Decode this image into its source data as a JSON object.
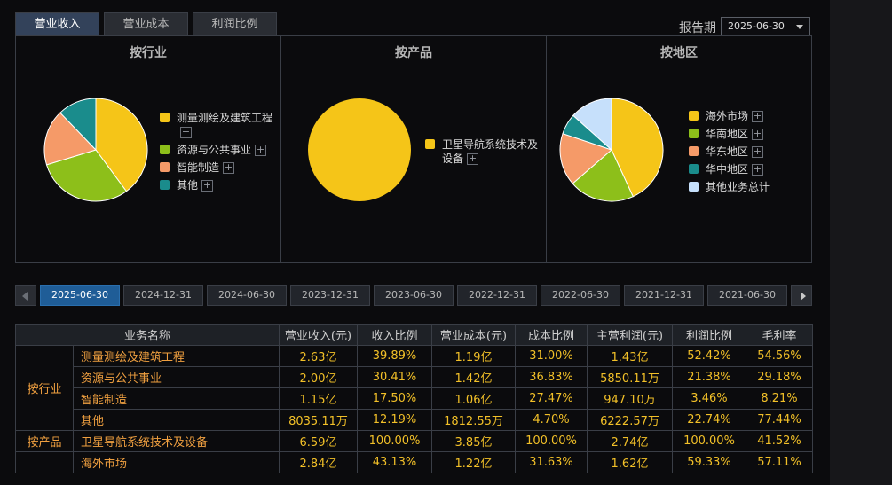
{
  "tabs": [
    "营业收入",
    "营业成本",
    "利润比例"
  ],
  "period": {
    "label": "报告期",
    "value": "2025-06-30"
  },
  "panels": [
    {
      "title": "按行业",
      "items": [
        {
          "name": "测量测绘及建筑工程",
          "value": 39.89,
          "color": "#f5c518",
          "expand": true
        },
        {
          "name": "资源与公共事业",
          "value": 30.41,
          "color": "#8dbf1a",
          "expand": true
        },
        {
          "name": "智能制造",
          "value": 17.5,
          "color": "#f59a68",
          "expand": true
        },
        {
          "name": "其他",
          "value": 12.19,
          "color": "#1a8c8c",
          "expand": true
        }
      ]
    },
    {
      "title": "按产品",
      "items": [
        {
          "name": "卫星导航系统技术及设备",
          "value": 100.0,
          "color": "#f5c518",
          "expand": true
        }
      ]
    },
    {
      "title": "按地区",
      "items": [
        {
          "name": "海外市场",
          "value": 43.13,
          "color": "#f5c518",
          "expand": true
        },
        {
          "name": "华南地区",
          "value": 20.5,
          "color": "#8dbf1a",
          "expand": true
        },
        {
          "name": "华东地区",
          "value": 16.5,
          "color": "#f59a68",
          "expand": true
        },
        {
          "name": "华中地区",
          "value": 6.5,
          "color": "#1a8c8c",
          "expand": true
        },
        {
          "name": "其他业务总计",
          "value": 13.37,
          "color": "#c6e0fb",
          "expand": false
        }
      ]
    }
  ],
  "dates": [
    "2025-06-30",
    "2024-12-31",
    "2024-06-30",
    "2023-12-31",
    "2023-06-30",
    "2022-12-31",
    "2022-06-30",
    "2021-12-31",
    "2021-06-30"
  ],
  "active_date": "2025-06-30",
  "table": {
    "headers": [
      "业务名称",
      "营业收入(元)",
      "收入比例",
      "营业成本(元)",
      "成本比例",
      "主营利润(元)",
      "利润比例",
      "毛利率"
    ],
    "groups": [
      {
        "category": "按行业",
        "rows": [
          [
            "测量测绘及建筑工程",
            "2.63亿",
            "39.89%",
            "1.19亿",
            "31.00%",
            "1.43亿",
            "52.42%",
            "54.56%"
          ],
          [
            "资源与公共事业",
            "2.00亿",
            "30.41%",
            "1.42亿",
            "36.83%",
            "5850.11万",
            "21.38%",
            "29.18%"
          ],
          [
            "智能制造",
            "1.15亿",
            "17.50%",
            "1.06亿",
            "27.47%",
            "947.10万",
            "3.46%",
            "8.21%"
          ],
          [
            "其他",
            "8035.11万",
            "12.19%",
            "1812.55万",
            "4.70%",
            "6222.57万",
            "22.74%",
            "77.44%"
          ]
        ]
      },
      {
        "category": "按产品",
        "rows": [
          [
            "卫星导航系统技术及设备",
            "6.59亿",
            "100.00%",
            "3.85亿",
            "100.00%",
            "2.74亿",
            "100.00%",
            "41.52%"
          ]
        ]
      },
      {
        "category": "",
        "rows": [
          [
            "海外市场",
            "2.84亿",
            "43.13%",
            "1.22亿",
            "31.63%",
            "1.62亿",
            "59.33%",
            "57.11%"
          ]
        ]
      }
    ]
  }
}
